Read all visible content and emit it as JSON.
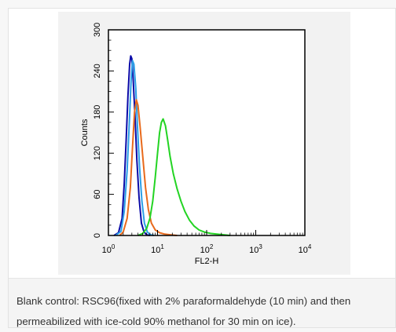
{
  "chart_data": {
    "type": "line",
    "title": "",
    "xlabel": "FL2-H",
    "ylabel": "Counts",
    "x_scale": "log",
    "xlim": [
      1,
      10000
    ],
    "ylim": [
      0,
      300
    ],
    "x_ticks": [
      {
        "base": "10",
        "exp": "0",
        "value": 1
      },
      {
        "base": "10",
        "exp": "1",
        "value": 10
      },
      {
        "base": "10",
        "exp": "2",
        "value": 100
      },
      {
        "base": "10",
        "exp": "3",
        "value": 1000
      },
      {
        "base": "10",
        "exp": "4",
        "value": 10000
      }
    ],
    "y_ticks": [
      "0",
      "60",
      "120",
      "180",
      "240",
      "300"
    ],
    "grid": false,
    "series": [
      {
        "color": "#0a0aa8",
        "points": [
          [
            1.3,
            0
          ],
          [
            1.6,
            4
          ],
          [
            1.9,
            25
          ],
          [
            2.1,
            75
          ],
          [
            2.3,
            140
          ],
          [
            2.5,
            205
          ],
          [
            2.7,
            250
          ],
          [
            2.85,
            262
          ],
          [
            3.0,
            258
          ],
          [
            3.2,
            225
          ],
          [
            3.5,
            170
          ],
          [
            3.8,
            110
          ],
          [
            4.2,
            55
          ],
          [
            4.7,
            18
          ],
          [
            5.3,
            5
          ],
          [
            6.0,
            1
          ],
          [
            7.0,
            0
          ]
        ]
      },
      {
        "color": "#2b9fe6",
        "points": [
          [
            1.4,
            0
          ],
          [
            1.8,
            6
          ],
          [
            2.1,
            35
          ],
          [
            2.4,
            95
          ],
          [
            2.7,
            175
          ],
          [
            2.9,
            228
          ],
          [
            3.1,
            255
          ],
          [
            3.3,
            250
          ],
          [
            3.6,
            215
          ],
          [
            3.9,
            160
          ],
          [
            4.3,
            100
          ],
          [
            4.8,
            50
          ],
          [
            5.4,
            18
          ],
          [
            6.2,
            5
          ],
          [
            7.2,
            1
          ],
          [
            8.5,
            0
          ]
        ]
      },
      {
        "color": "#e86a1c",
        "points": [
          [
            1.7,
            0
          ],
          [
            2.0,
            5
          ],
          [
            2.4,
            25
          ],
          [
            2.8,
            70
          ],
          [
            3.1,
            130
          ],
          [
            3.4,
            180
          ],
          [
            3.7,
            198
          ],
          [
            4.0,
            190
          ],
          [
            4.4,
            160
          ],
          [
            5.0,
            115
          ],
          [
            5.7,
            70
          ],
          [
            6.5,
            38
          ],
          [
            7.5,
            18
          ],
          [
            9,
            8
          ],
          [
            11,
            4
          ],
          [
            14,
            2
          ],
          [
            18,
            1
          ],
          [
            25,
            0
          ]
        ]
      },
      {
        "color": "#23d423",
        "points": [
          [
            4.0,
            0
          ],
          [
            5.0,
            3
          ],
          [
            6.0,
            10
          ],
          [
            7.0,
            25
          ],
          [
            8.0,
            50
          ],
          [
            9.0,
            85
          ],
          [
            10,
            120
          ],
          [
            11,
            150
          ],
          [
            12,
            165
          ],
          [
            13,
            170
          ],
          [
            14.5,
            160
          ],
          [
            16,
            140
          ],
          [
            18,
            115
          ],
          [
            21,
            90
          ],
          [
            25,
            68
          ],
          [
            30,
            50
          ],
          [
            36,
            35
          ],
          [
            45,
            22
          ],
          [
            55,
            14
          ],
          [
            70,
            8
          ],
          [
            90,
            5
          ],
          [
            120,
            3
          ],
          [
            160,
            2
          ],
          [
            220,
            1
          ],
          [
            300,
            0
          ]
        ]
      }
    ]
  },
  "caption": {
    "line1": "Blank control: RSC96(fixed with 2% paraformaldehyde (10 min) and then",
    "line2": "permeabilized with ice-cold 90% methanol for 30 min on ice)."
  }
}
